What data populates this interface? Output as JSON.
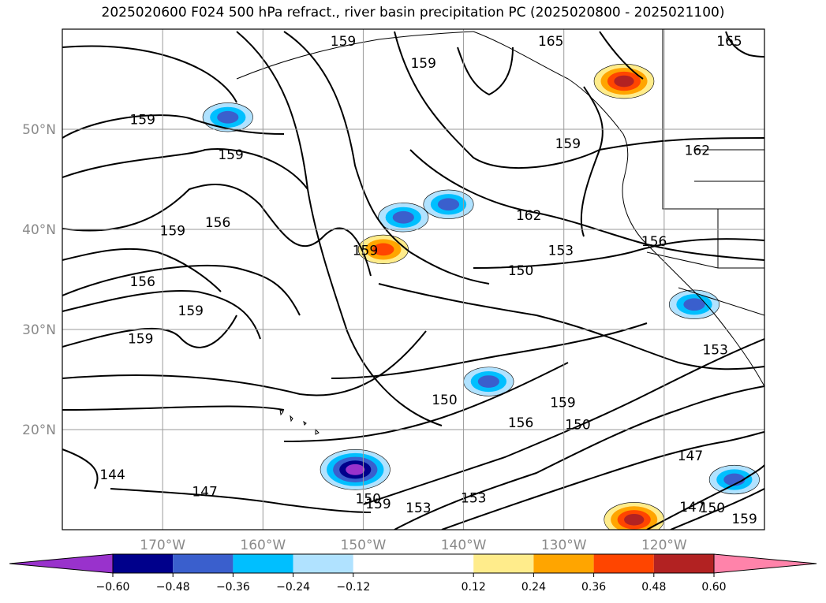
{
  "chart_data": {
    "type": "heatmap",
    "title": "2025020600 F024 500 hPa refract., river basin precipitation PC (2025020800 - 2025021100)",
    "xlim": [
      -180,
      -110
    ],
    "ylim": [
      10,
      60
    ],
    "grid": true,
    "lat_ticks": [
      "20°N",
      "30°N",
      "40°N",
      "50°N"
    ],
    "lon_ticks": [
      "170°W",
      "160°W",
      "150°W",
      "140°W",
      "130°W",
      "120°W"
    ],
    "colorbar": {
      "position": "bottom",
      "extend": "both",
      "boundaries": [
        -0.72,
        -0.6,
        -0.48,
        -0.36,
        -0.24,
        -0.12,
        0.12,
        0.24,
        0.36,
        0.48,
        0.6,
        0.72
      ],
      "tick_labels": [
        "−0.60",
        "−0.48",
        "−0.36",
        "−0.24",
        "−0.12",
        "0.12",
        "0.24",
        "0.36",
        "0.48",
        "0.60"
      ],
      "colors": [
        "#9932cc",
        "#00008b",
        "#3a5fcd",
        "#00bfff",
        "#b0e2ff",
        "#ffffff",
        "#ffec8b",
        "#ffa500",
        "#ff4500",
        "#b22222",
        "#ff83aa"
      ]
    },
    "contour_labels": [
      {
        "text": "159",
        "lon": -172.0,
        "lat": 51.0
      },
      {
        "text": "159",
        "lon": -163.2,
        "lat": 47.5
      },
      {
        "text": "159",
        "lon": -169.0,
        "lat": 39.9
      },
      {
        "text": "156",
        "lon": -164.5,
        "lat": 40.7
      },
      {
        "text": "156",
        "lon": -172.0,
        "lat": 34.8
      },
      {
        "text": "159",
        "lon": -167.2,
        "lat": 31.9
      },
      {
        "text": "159",
        "lon": -172.2,
        "lat": 29.1
      },
      {
        "text": "144",
        "lon": -175.0,
        "lat": 15.5
      },
      {
        "text": "147",
        "lon": -165.8,
        "lat": 13.8
      },
      {
        "text": "159",
        "lon": -152.0,
        "lat": 58.8
      },
      {
        "text": "159",
        "lon": -144.0,
        "lat": 56.6
      },
      {
        "text": "165",
        "lon": -131.3,
        "lat": 58.8
      },
      {
        "text": "165",
        "lon": -113.5,
        "lat": 58.8
      },
      {
        "text": "162",
        "lon": -116.7,
        "lat": 47.9
      },
      {
        "text": "159",
        "lon": -129.6,
        "lat": 48.6
      },
      {
        "text": "162",
        "lon": -133.5,
        "lat": 41.4
      },
      {
        "text": "156",
        "lon": -121.0,
        "lat": 38.8
      },
      {
        "text": "153",
        "lon": -130.3,
        "lat": 37.9
      },
      {
        "text": "150",
        "lon": -134.3,
        "lat": 35.9
      },
      {
        "text": "159",
        "lon": -149.8,
        "lat": 37.9
      },
      {
        "text": "150",
        "lon": -141.9,
        "lat": 23.0
      },
      {
        "text": "156",
        "lon": -134.3,
        "lat": 20.7
      },
      {
        "text": "159",
        "lon": -130.1,
        "lat": 22.7
      },
      {
        "text": "150",
        "lon": -128.6,
        "lat": 20.5
      },
      {
        "text": "147",
        "lon": -117.4,
        "lat": 17.4
      },
      {
        "text": "153",
        "lon": -114.9,
        "lat": 28.0
      },
      {
        "text": "150",
        "lon": -149.5,
        "lat": 13.1
      },
      {
        "text": "159",
        "lon": -148.5,
        "lat": 12.6
      },
      {
        "text": "153",
        "lon": -144.5,
        "lat": 12.2
      },
      {
        "text": "153",
        "lon": -139.0,
        "lat": 13.2
      },
      {
        "text": "147",
        "lon": -117.2,
        "lat": 12.3
      },
      {
        "text": "150",
        "lon": -115.2,
        "lat": 12.2
      },
      {
        "text": "159",
        "lon": -112.0,
        "lat": 11.1
      }
    ],
    "features": [
      {
        "category": "positive",
        "level": 0.48,
        "lon": -124.0,
        "lat": 54.8
      },
      {
        "category": "positive",
        "level": 0.36,
        "lon": -148.0,
        "lat": 38.0
      },
      {
        "category": "positive",
        "level": 0.48,
        "lon": -123.0,
        "lat": 11.0
      },
      {
        "category": "negative",
        "level": -0.6,
        "lon": -150.8,
        "lat": 16.0
      },
      {
        "category": "negative",
        "level": -0.36,
        "lon": -163.5,
        "lat": 51.2
      },
      {
        "category": "negative",
        "level": -0.36,
        "lon": -141.5,
        "lat": 42.5
      },
      {
        "category": "negative",
        "level": -0.36,
        "lon": -146.0,
        "lat": 41.2
      },
      {
        "category": "negative",
        "level": -0.36,
        "lon": -137.5,
        "lat": 24.8
      },
      {
        "category": "negative",
        "level": -0.36,
        "lon": -117.0,
        "lat": 32.5
      },
      {
        "category": "negative",
        "level": -0.36,
        "lon": -113.0,
        "lat": 15.0
      }
    ]
  }
}
